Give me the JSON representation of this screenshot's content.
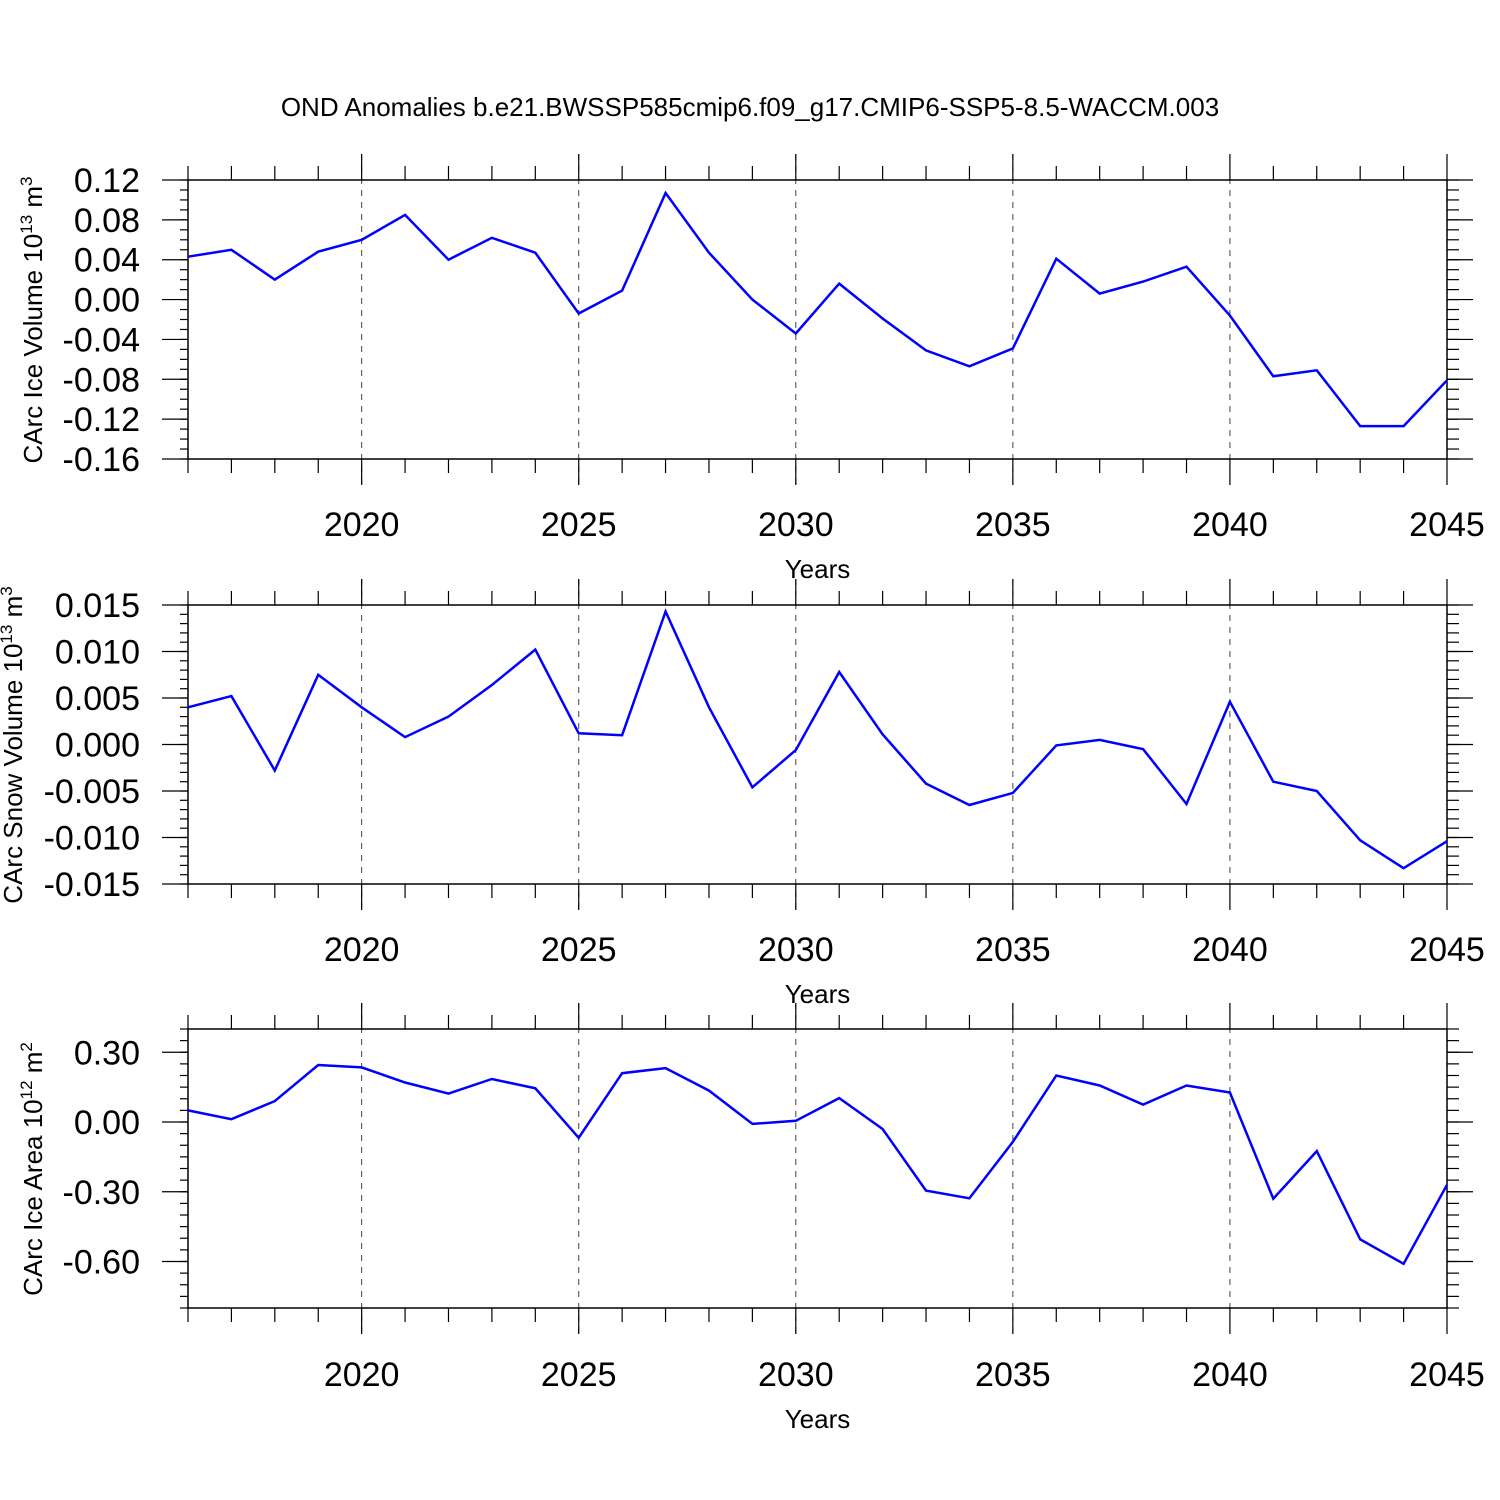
{
  "title": "OND Anomalies b.e21.BWSSP585cmip6.f09_g17.CMIP6-SSP5-8.5-WACCM.003",
  "line_color": "#0000ff",
  "chart_data": [
    {
      "type": "line",
      "xlabel": "Years",
      "ylabel_main": "CArc Ice Volume 10",
      "ylabel_exp": "13",
      "ylabel_unit": " m",
      "ylabel_unit_exp": "3",
      "xlim": [
        2016,
        2045
      ],
      "ylim": [
        -0.16,
        0.12
      ],
      "yticks": [
        0.12,
        0.08,
        0.04,
        0.0,
        -0.04,
        -0.08,
        -0.12,
        -0.16
      ],
      "ytick_labels": [
        "0.12",
        "0.08",
        "0.04",
        "0.00",
        "-0.04",
        "-0.08",
        "-0.12",
        "-0.16"
      ],
      "xticks": [
        2020,
        2025,
        2030,
        2035,
        2040,
        2045
      ],
      "xtick_labels": [
        "2020",
        "2025",
        "2030",
        "2035",
        "2040",
        "2045"
      ],
      "grid_x": true,
      "x": [
        2016,
        2017,
        2018,
        2019,
        2020,
        2021,
        2022,
        2023,
        2024,
        2025,
        2026,
        2027,
        2028,
        2029,
        2030,
        2031,
        2032,
        2033,
        2034,
        2035,
        2036,
        2037,
        2038,
        2039,
        2040,
        2041,
        2042,
        2043,
        2044,
        2045
      ],
      "values": [
        0.043,
        0.05,
        0.02,
        0.048,
        0.06,
        0.085,
        0.04,
        0.062,
        0.047,
        -0.014,
        0.009,
        0.107,
        0.047,
        0.0,
        -0.034,
        0.016,
        -0.019,
        -0.051,
        -0.067,
        -0.049,
        0.041,
        0.006,
        0.018,
        0.033,
        -0.016,
        -0.077,
        -0.071,
        -0.127,
        -0.127,
        -0.081
      ]
    },
    {
      "type": "line",
      "xlabel": "Years",
      "ylabel_main": "CArc Snow Volume 10",
      "ylabel_exp": "13",
      "ylabel_unit": " m",
      "ylabel_unit_exp": "3",
      "xlim": [
        2016,
        2045
      ],
      "ylim": [
        -0.015,
        0.015
      ],
      "yticks": [
        0.015,
        0.01,
        0.005,
        0.0,
        -0.005,
        -0.01,
        -0.015
      ],
      "ytick_labels": [
        "0.015",
        "0.010",
        "0.005",
        "0.000",
        "-0.005",
        "-0.010",
        "-0.015"
      ],
      "xticks": [
        2020,
        2025,
        2030,
        2035,
        2040,
        2045
      ],
      "xtick_labels": [
        "2020",
        "2025",
        "2030",
        "2035",
        "2040",
        "2045"
      ],
      "grid_x": true,
      "x": [
        2016,
        2017,
        2018,
        2019,
        2020,
        2021,
        2022,
        2023,
        2024,
        2025,
        2026,
        2027,
        2028,
        2029,
        2030,
        2031,
        2032,
        2033,
        2034,
        2035,
        2036,
        2037,
        2038,
        2039,
        2040,
        2041,
        2042,
        2043,
        2044,
        2045
      ],
      "values": [
        0.004,
        0.0052,
        -0.0028,
        0.0075,
        0.004,
        0.0008,
        0.003,
        0.0064,
        0.0102,
        0.0012,
        0.001,
        0.0143,
        0.004,
        -0.0046,
        -0.0006,
        0.0078,
        0.0011,
        -0.0042,
        -0.0065,
        -0.0052,
        -0.0001,
        0.0005,
        -0.0005,
        -0.0064,
        0.0046,
        -0.004,
        -0.005,
        -0.0103,
        -0.0133,
        -0.0104
      ]
    },
    {
      "type": "line",
      "xlabel": "Years",
      "ylabel_main": "CArc Ice Area 10",
      "ylabel_exp": "12",
      "ylabel_unit": " m",
      "ylabel_unit_exp": "2",
      "xlim": [
        2016,
        2045
      ],
      "ylim": [
        -0.8,
        0.4
      ],
      "yticks": [
        0.3,
        0.0,
        -0.3,
        -0.6
      ],
      "ytick_labels": [
        "0.30",
        "0.00",
        "-0.30",
        "-0.60"
      ],
      "xticks": [
        2020,
        2025,
        2030,
        2035,
        2040,
        2045
      ],
      "xtick_labels": [
        "2020",
        "2025",
        "2030",
        "2035",
        "2040",
        "2045"
      ],
      "grid_x": true,
      "x": [
        2016,
        2017,
        2018,
        2019,
        2020,
        2021,
        2022,
        2023,
        2024,
        2025,
        2026,
        2027,
        2028,
        2029,
        2030,
        2031,
        2032,
        2033,
        2034,
        2035,
        2036,
        2037,
        2038,
        2039,
        2040,
        2041,
        2042,
        2043,
        2044,
        2045
      ],
      "values": [
        0.05,
        0.012,
        0.09,
        0.245,
        0.235,
        0.17,
        0.122,
        0.185,
        0.145,
        -0.068,
        0.21,
        0.232,
        0.135,
        -0.008,
        0.005,
        0.103,
        -0.03,
        -0.295,
        -0.328,
        -0.085,
        0.2,
        0.157,
        0.075,
        0.157,
        0.127,
        -0.33,
        -0.125,
        -0.505,
        -0.61,
        -0.27
      ]
    }
  ]
}
